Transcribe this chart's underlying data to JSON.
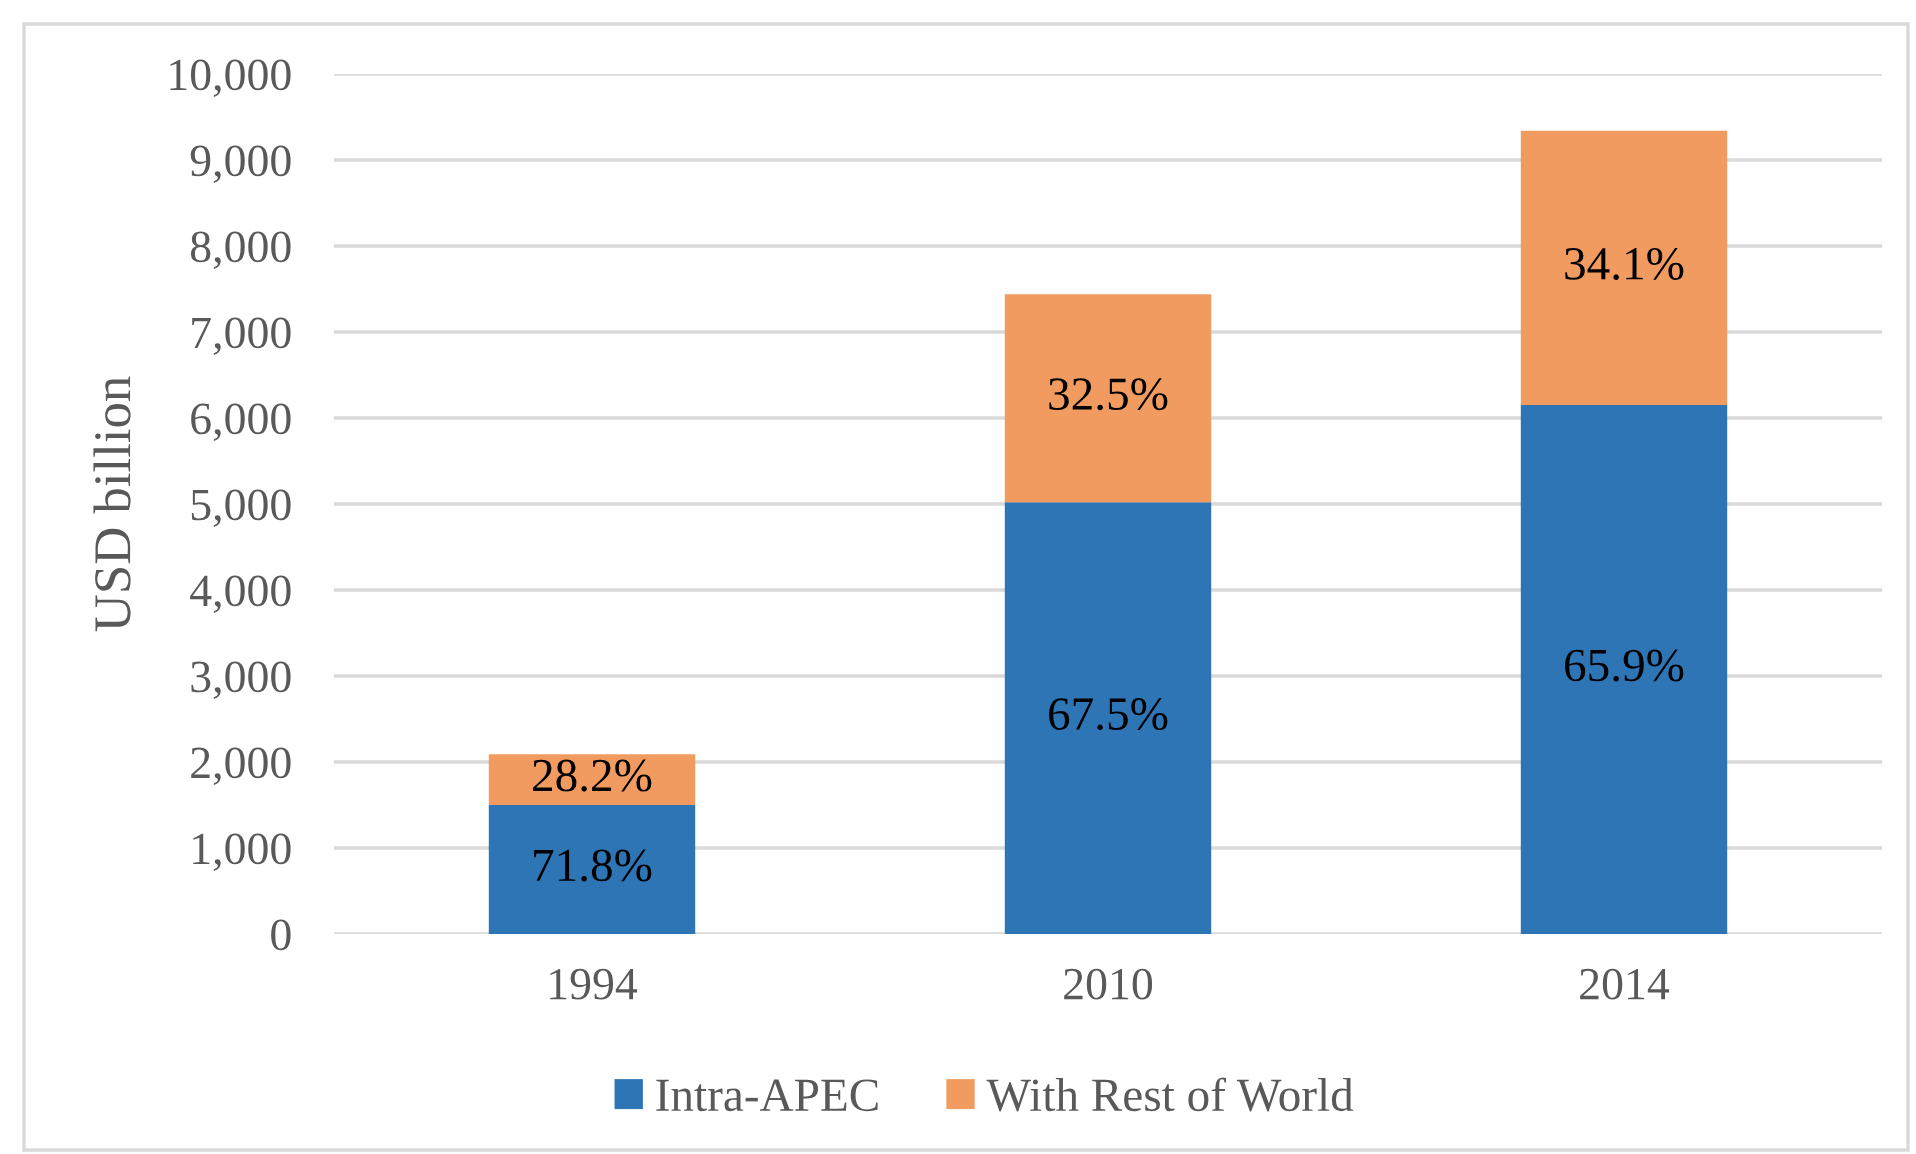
{
  "chart_data": {
    "type": "bar",
    "stacked": true,
    "ylabel": "USD billion",
    "categories": [
      "1994",
      "2010",
      "2014"
    ],
    "series": [
      {
        "name": "Intra-APEC",
        "color": "#2e75b6",
        "values": [
          1500,
          5020,
          6150
        ]
      },
      {
        "name": "With Rest of World",
        "color": "#f19b61",
        "values": [
          590,
          2420,
          3190
        ]
      }
    ],
    "annotations": [
      "71.8%",
      "67.5%",
      "65.9%",
      "28.2%",
      "32.5%",
      "34.1%"
    ],
    "ylim": [
      0,
      10000
    ],
    "yticks": [
      0,
      {
        "value": 1000,
        "label": "1,000"
      },
      {
        "value": 2000,
        "label": "2,000"
      },
      {
        "value": 3000,
        "label": "3,000"
      },
      {
        "value": 4000,
        "label": "4,000"
      },
      {
        "value": 5000,
        "label": "5,000"
      },
      {
        "value": 6000,
        "label": "6,000"
      },
      {
        "value": 7000,
        "label": "7,000"
      },
      {
        "value": 8000,
        "label": "8,000"
      },
      {
        "value": 9000,
        "label": "9,000"
      },
      {
        "value": 10000,
        "label": "10,000"
      }
    ],
    "grid": "y",
    "legend": "bottom"
  }
}
